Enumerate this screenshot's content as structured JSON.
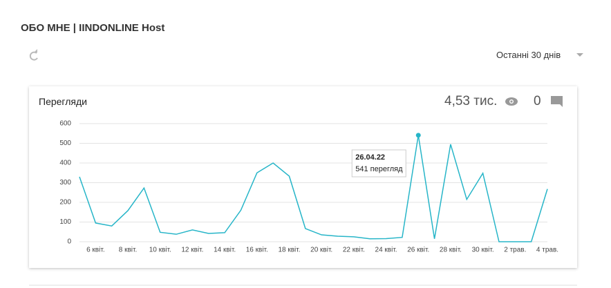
{
  "header": {
    "title": "ОБО МНЕ | IINDONLINE Host",
    "period": "Останні 30 днів"
  },
  "card": {
    "title": "Перегляди",
    "views": "4,53 тис.",
    "comments": "0"
  },
  "chart_data": {
    "type": "line",
    "categories": [
      null,
      "6 квіт.",
      null,
      "8 квіт.",
      null,
      "10 квіт.",
      null,
      "12 квіт.",
      null,
      "14 квіт.",
      null,
      "16 квіт.",
      null,
      "18 квіт.",
      null,
      "20 квіт.",
      null,
      "22 квіт.",
      null,
      "24 квіт.",
      null,
      "26 квіт.",
      null,
      "28 квіт.",
      null,
      "30 квіт.",
      null,
      "2 трав.",
      null,
      "4 трав."
    ],
    "series": [
      {
        "name": "Перегляди",
        "color": "#26b5c8",
        "values": [
          330,
          95,
          80,
          158,
          273,
          48,
          38,
          60,
          42,
          46,
          160,
          350,
          400,
          333,
          67,
          35,
          28,
          25,
          15,
          16,
          22,
          541,
          15,
          495,
          215,
          348,
          0,
          0,
          0,
          268
        ]
      }
    ],
    "ylim": [
      0,
      600
    ],
    "yticks": [
      0,
      100,
      200,
      300,
      400,
      500,
      600
    ],
    "grid": true,
    "tooltip": {
      "index": 21,
      "title": "26.04.22",
      "text": "541 перегляд"
    }
  }
}
